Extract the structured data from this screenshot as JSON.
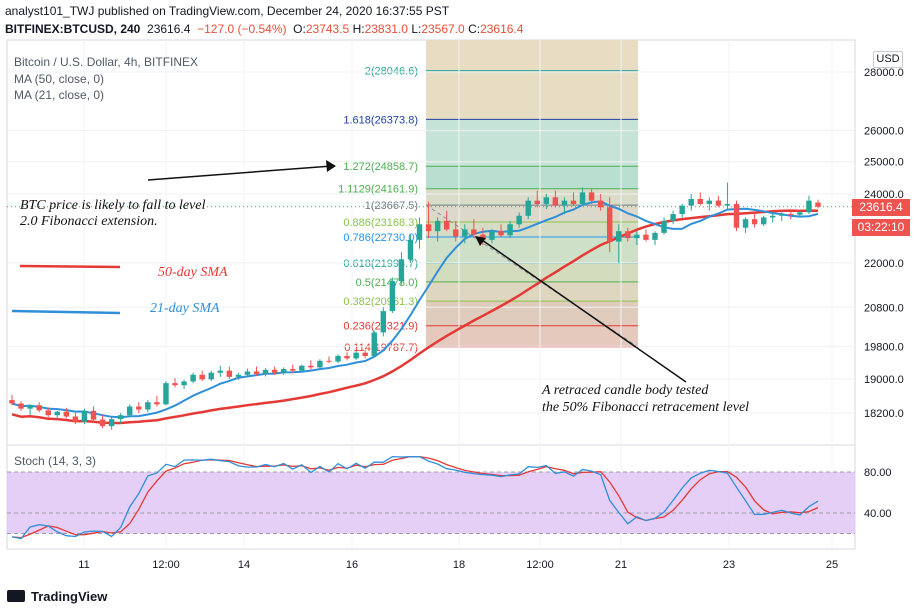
{
  "header": {
    "line1": "analyst101_TWJ published on TradingView.com, December 24, 2020 16:37:55 PST",
    "symbol": "BITFINEX:BTCUSD, 240",
    "last": "23616.4",
    "change": "−127.0 (−0.54%)",
    "o_label": "O:",
    "o": "23743.5",
    "h_label": "H:",
    "h": "23831.0",
    "l_label": "L:",
    "l": "23567.0",
    "c_label": "C:",
    "c": "23616.4"
  },
  "legend": {
    "title": "Bitcoin / U.S. Dollar, 4h, BITFINEX",
    "ma50": "MA (50, close, 0)",
    "ma21": "MA (21, close, 0)"
  },
  "currency_label": "USD",
  "price_tag": {
    "price": "23616.4",
    "countdown": "03:22:10"
  },
  "annotations": {
    "left_text_line1": "BTC price is likely to fall to level",
    "left_text_line2": "2.0 Fibonacci extension.",
    "sma50_label": "50-day SMA",
    "sma21_label": "21-day SMA",
    "bottom_text_line1": "A retraced candle body tested",
    "bottom_text_line2": "the 50% Fibonacci retracement level"
  },
  "stoch_label": "Stoch (14, 3, 3)",
  "footer": {
    "brand": "TradingView"
  },
  "colors": {
    "up": "#26a69a",
    "down": "#ef5350",
    "sma50": "#e53935",
    "sma21": "#2f8fd8",
    "stoch_k": "#2f8fd8",
    "stoch_d": "#e53935",
    "stoch_band": "#e1c7f5"
  },
  "chart_data": [
    {
      "type": "candlestick",
      "title": "Bitcoin / U.S. Dollar, 4h, BITFINEX",
      "y_scale": "log",
      "y_ticks": [
        28000.0,
        26000.0,
        25000.0,
        24000.0,
        22000.0,
        20800.0,
        19800.0,
        19000.0,
        18200.0
      ],
      "y_tick_labels": [
        "28000.0",
        "26000.0",
        "25000.0",
        "24000.0",
        "22000.0",
        "20800.0",
        "19800.0",
        "19000.0",
        "18200.0"
      ],
      "x_tick_labels": [
        "11",
        "12:00",
        "14",
        "16",
        "18",
        "12:00",
        "21",
        "23",
        "25"
      ],
      "fibonacci": [
        {
          "ratio": "2",
          "price": 28046.6,
          "color": "#26a69a"
        },
        {
          "ratio": "1.618",
          "price": 26373.8,
          "color": "#2340a8"
        },
        {
          "ratio": "1.272",
          "price": 24858.7,
          "color": "#4caf50"
        },
        {
          "ratio": "1.1129",
          "price": 24161.9,
          "color": "#4caf50"
        },
        {
          "ratio": "1",
          "price": 23667.5,
          "color": "#787b86"
        },
        {
          "ratio": "0.886",
          "price": 23168.3,
          "color": "#8bc34a"
        },
        {
          "ratio": "0.786",
          "price": 22730.0,
          "color": "#2196f3"
        },
        {
          "ratio": "0.618",
          "price": 21994.7,
          "color": "#26a69a"
        },
        {
          "ratio": "0.5",
          "price": 21478.0,
          "color": "#4caf50"
        },
        {
          "ratio": "0.382",
          "price": 20961.3,
          "color": "#8bc34a"
        },
        {
          "ratio": "0.236",
          "price": 20321.9,
          "color": "#e53935"
        },
        {
          "ratio": "0.114",
          "price": 19787.7,
          "color": "#e53935"
        }
      ],
      "fib_label_texts": [
        "2(28046.6)",
        "1.618(26373.8)",
        "1.272(24858.7)",
        "1.1129(24161.9)",
        "1(23667.5)",
        "0.886(23168.3)",
        "0.786(22730.0)",
        "0.618(21994.7)",
        "0.5(21478.0)",
        "0.382(20961.3)",
        "0.236(20321.9)",
        "0.114(19787.7)"
      ],
      "candles": [
        [
          18500,
          18620,
          18380,
          18420
        ],
        [
          18420,
          18480,
          18250,
          18300
        ],
        [
          18300,
          18400,
          18150,
          18380
        ],
        [
          18380,
          18450,
          18220,
          18260
        ],
        [
          18260,
          18330,
          18100,
          18150
        ],
        [
          18150,
          18250,
          18050,
          18230
        ],
        [
          18230,
          18320,
          18080,
          18120
        ],
        [
          18120,
          18200,
          17950,
          18000
        ],
        [
          18000,
          18300,
          17950,
          18250
        ],
        [
          18250,
          18350,
          17980,
          18050
        ],
        [
          18050,
          18150,
          17850,
          17900
        ],
        [
          17900,
          18100,
          17820,
          18060
        ],
        [
          18060,
          18200,
          17950,
          18150
        ],
        [
          18150,
          18400,
          18100,
          18350
        ],
        [
          18350,
          18450,
          18200,
          18280
        ],
        [
          18280,
          18500,
          18220,
          18450
        ],
        [
          18450,
          18600,
          18350,
          18400
        ],
        [
          18400,
          18950,
          18380,
          18900
        ],
        [
          18900,
          19020,
          18800,
          18850
        ],
        [
          18850,
          18980,
          18760,
          18940
        ],
        [
          18940,
          19150,
          18900,
          19100
        ],
        [
          19100,
          19200,
          18950,
          18990
        ],
        [
          18990,
          19200,
          18950,
          19150
        ],
        [
          19150,
          19320,
          19050,
          19200
        ],
        [
          19200,
          19300,
          19000,
          19050
        ],
        [
          19050,
          19150,
          18980,
          19100
        ],
        [
          19100,
          19250,
          19040,
          19180
        ],
        [
          19180,
          19300,
          19080,
          19120
        ],
        [
          19120,
          19260,
          19060,
          19220
        ],
        [
          19220,
          19300,
          19100,
          19150
        ],
        [
          19150,
          19280,
          19100,
          19240
        ],
        [
          19240,
          19350,
          19150,
          19200
        ],
        [
          19200,
          19350,
          19150,
          19320
        ],
        [
          19320,
          19450,
          19220,
          19280
        ],
        [
          19280,
          19480,
          19250,
          19440
        ],
        [
          19440,
          19550,
          19380,
          19420
        ],
        [
          19420,
          19600,
          19380,
          19560
        ],
        [
          19560,
          19650,
          19450,
          19500
        ],
        [
          19500,
          19680,
          19460,
          19640
        ],
        [
          19640,
          19700,
          19500,
          19560
        ],
        [
          19560,
          20200,
          19530,
          20150
        ],
        [
          20150,
          20800,
          20050,
          20700
        ],
        [
          20700,
          21600,
          20650,
          21500
        ],
        [
          21500,
          22300,
          21400,
          22100
        ],
        [
          22100,
          22800,
          22000,
          22650
        ],
        [
          22650,
          23300,
          22400,
          23100
        ],
        [
          23100,
          23770,
          22700,
          22900
        ],
        [
          22900,
          23300,
          22600,
          23200
        ],
        [
          23200,
          23500,
          22900,
          22950
        ],
        [
          22950,
          23200,
          22600,
          22750
        ],
        [
          22750,
          23100,
          22550,
          22950
        ],
        [
          22950,
          23250,
          22700,
          22800
        ],
        [
          22800,
          23000,
          22500,
          22650
        ],
        [
          22650,
          22950,
          22550,
          22900
        ],
        [
          22900,
          23100,
          22750,
          22780
        ],
        [
          22780,
          23200,
          22700,
          23100
        ],
        [
          23100,
          23450,
          23000,
          23350
        ],
        [
          23350,
          23900,
          23250,
          23800
        ],
        [
          23800,
          24100,
          23600,
          23700
        ],
        [
          23700,
          24000,
          23550,
          23900
        ],
        [
          23900,
          24100,
          23600,
          23650
        ],
        [
          23650,
          23900,
          23400,
          23800
        ],
        [
          23800,
          24050,
          23650,
          23700
        ],
        [
          23700,
          24200,
          23650,
          24050
        ],
        [
          24050,
          24150,
          23700,
          23800
        ],
        [
          23800,
          24000,
          23500,
          23600
        ],
        [
          23600,
          23900,
          22300,
          22600
        ],
        [
          22600,
          23100,
          22000,
          22900
        ],
        [
          22900,
          23000,
          22600,
          22700
        ],
        [
          22700,
          22900,
          22500,
          22800
        ],
        [
          22800,
          22950,
          22600,
          22650
        ],
        [
          22650,
          22900,
          22500,
          22850
        ],
        [
          22850,
          23300,
          22800,
          23200
        ],
        [
          23200,
          23500,
          23100,
          23400
        ],
        [
          23400,
          23700,
          23300,
          23650
        ],
        [
          23650,
          24000,
          23500,
          23850
        ],
        [
          23850,
          24050,
          23650,
          23700
        ],
        [
          23700,
          23900,
          23500,
          23800
        ],
        [
          23800,
          23950,
          23600,
          23650
        ],
        [
          23650,
          24350,
          23550,
          23700
        ],
        [
          23700,
          23800,
          22900,
          23000
        ],
        [
          23000,
          23300,
          22850,
          23250
        ],
        [
          23250,
          23400,
          23000,
          23100
        ],
        [
          23100,
          23350,
          23050,
          23300
        ],
        [
          23300,
          23450,
          23150,
          23350
        ],
        [
          23350,
          23500,
          23200,
          23400
        ],
        [
          23400,
          23500,
          23250,
          23380
        ],
        [
          23380,
          23500,
          23300,
          23450
        ],
        [
          23450,
          23950,
          23400,
          23800
        ],
        [
          23743.5,
          23831.0,
          23567.0,
          23616.4
        ]
      ],
      "stoch_levels": [
        80,
        40,
        20
      ],
      "stoch_level_labels": [
        "80.00",
        "40.00"
      ]
    }
  ]
}
